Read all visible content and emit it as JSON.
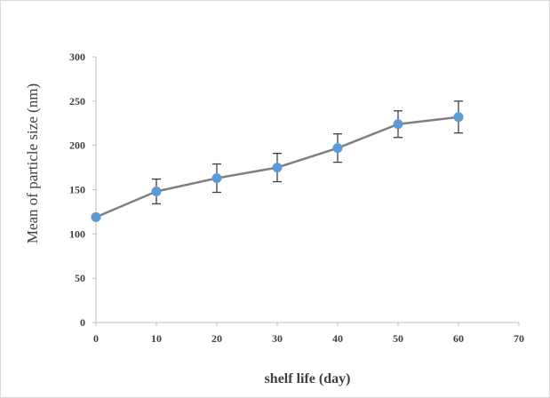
{
  "chart_data": {
    "type": "line",
    "title": "",
    "xlabel": "shelf life (day)",
    "ylabel": "Mean of particle size (nm)",
    "xlim": [
      0,
      70
    ],
    "ylim": [
      0,
      300
    ],
    "xticks": [
      0,
      10,
      20,
      30,
      40,
      50,
      60,
      70
    ],
    "yticks": [
      0,
      50,
      100,
      150,
      200,
      250,
      300
    ],
    "x_tick_labels": [
      "0",
      "10",
      "20",
      "30",
      "40",
      "50",
      "60",
      "70"
    ],
    "y_tick_labels": [
      "0",
      "50",
      "100",
      "150",
      "200",
      "250",
      "300"
    ],
    "grid": false,
    "legend": "none",
    "series": [
      {
        "x": [
          0,
          10,
          20,
          30,
          40,
          50,
          60
        ],
        "y": [
          119,
          148,
          163,
          175,
          197,
          224,
          232
        ],
        "error": [
          0,
          14,
          16,
          16,
          16,
          15,
          18
        ],
        "marker_color": "#5b9bd5",
        "line_color": "#7f7f7f"
      }
    ]
  }
}
